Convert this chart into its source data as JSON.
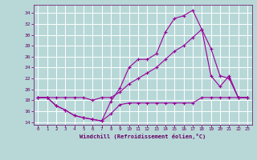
{
  "background_color": "#b8d8d8",
  "grid_color": "#ffffff",
  "line_color": "#990099",
  "xlabel": "Windchill (Refroidissement éolien,°C)",
  "xlabel_color": "#660066",
  "tick_color": "#660066",
  "xlim": [
    -0.5,
    23.5
  ],
  "ylim": [
    13.5,
    35.5
  ],
  "yticks": [
    14,
    16,
    18,
    20,
    22,
    24,
    26,
    28,
    30,
    32,
    34
  ],
  "xticks": [
    0,
    1,
    2,
    3,
    4,
    5,
    6,
    7,
    8,
    9,
    10,
    11,
    12,
    13,
    14,
    15,
    16,
    17,
    18,
    19,
    20,
    21,
    22,
    23
  ],
  "line1_x": [
    0,
    1,
    2,
    3,
    4,
    5,
    6,
    7,
    8,
    9,
    10,
    11,
    12,
    13,
    14,
    15,
    16,
    17,
    18,
    19,
    20,
    21,
    22,
    23
  ],
  "line1_y": [
    18.5,
    18.5,
    17.0,
    16.2,
    15.2,
    14.8,
    14.5,
    14.2,
    15.5,
    17.2,
    17.5,
    17.5,
    17.5,
    17.5,
    17.5,
    17.5,
    17.5,
    17.5,
    18.5,
    18.5,
    18.5,
    18.5,
    18.5,
    18.5
  ],
  "line2_x": [
    0,
    1,
    2,
    3,
    4,
    5,
    6,
    7,
    8,
    9,
    10,
    11,
    12,
    13,
    14,
    15,
    16,
    17,
    18,
    19,
    20,
    21,
    22,
    23
  ],
  "line2_y": [
    18.5,
    18.5,
    18.5,
    18.5,
    18.5,
    18.5,
    18.0,
    18.5,
    18.5,
    19.5,
    21.0,
    22.0,
    23.0,
    24.0,
    25.5,
    27.0,
    28.0,
    29.5,
    31.0,
    27.5,
    22.5,
    22.0,
    18.5,
    18.5
  ],
  "line3_x": [
    0,
    1,
    2,
    3,
    4,
    5,
    6,
    7,
    8,
    9,
    10,
    11,
    12,
    13,
    14,
    15,
    16,
    17,
    18,
    19,
    20,
    21,
    22,
    23
  ],
  "line3_y": [
    18.5,
    18.5,
    17.0,
    16.2,
    15.2,
    14.8,
    14.5,
    14.2,
    17.8,
    20.2,
    24.0,
    25.5,
    25.5,
    26.5,
    30.5,
    33.0,
    33.5,
    34.5,
    31.0,
    22.5,
    20.5,
    22.5,
    18.5,
    18.5
  ]
}
